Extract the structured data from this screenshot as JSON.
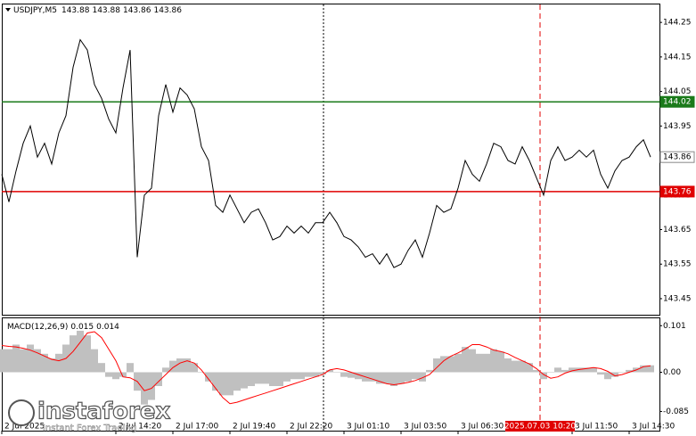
{
  "chart_data": [
    {
      "type": "line",
      "title": "USDJPY,M5",
      "ohlc": [
        143.88,
        143.88,
        143.86,
        143.86
      ],
      "color": "#000000",
      "values": [
        143.81,
        143.73,
        143.82,
        143.9,
        143.95,
        143.86,
        143.9,
        143.84,
        143.93,
        143.98,
        144.12,
        144.2,
        144.17,
        144.07,
        144.03,
        143.97,
        143.93,
        144.06,
        144.17,
        143.57,
        143.75,
        143.77,
        143.98,
        144.07,
        143.99,
        144.06,
        144.04,
        144.0,
        143.89,
        143.85,
        143.72,
        143.7,
        143.75,
        143.71,
        143.67,
        143.7,
        143.71,
        143.67,
        143.62,
        143.63,
        143.66,
        143.64,
        143.66,
        143.64,
        143.67,
        143.67,
        143.7,
        143.67,
        143.63,
        143.62,
        143.6,
        143.57,
        143.58,
        143.55,
        143.58,
        143.54,
        143.55,
        143.59,
        143.62,
        143.57,
        143.64,
        143.72,
        143.7,
        143.71,
        143.77,
        143.85,
        143.81,
        143.79,
        143.84,
        143.9,
        143.89,
        143.85,
        143.84,
        143.89,
        143.85,
        143.8,
        143.75,
        143.85,
        143.89,
        143.85,
        143.86,
        143.88,
        143.86,
        143.88,
        143.81,
        143.77,
        143.82,
        143.85,
        143.86,
        143.89,
        143.91,
        143.86
      ],
      "ylim": [
        143.406,
        144.302
      ],
      "yticks": [
        143.45,
        143.55,
        143.65,
        143.75,
        143.85,
        143.95,
        144.05,
        144.15,
        144.25
      ],
      "xlim": [
        0,
        92.25
      ],
      "xticks": [
        {
          "value": 0,
          "label": "2 Jul 2025"
        },
        {
          "value": 16,
          "label": "2 Jul 14:20"
        },
        {
          "value": 24,
          "label": "2 Jul 17:00"
        },
        {
          "value": 32,
          "label": "2 Jul 19:40"
        },
        {
          "value": 40,
          "label": "2 Jul 22:20"
        },
        {
          "value": 48,
          "label": "3 Jul 01:10"
        },
        {
          "value": 56,
          "label": "3 Jul 03:50"
        },
        {
          "value": 64,
          "label": "3 Jul 06:30"
        },
        {
          "value": 80,
          "label": "3 Jul 11:50"
        },
        {
          "value": 88,
          "label": "3 Jul 14:30"
        }
      ],
      "crosshair": {
        "value": 75.5,
        "label": "2025.07.03 10:20",
        "color": "#e00000"
      },
      "levels": [
        {
          "value": 144.02,
          "color": "#1a7a1a"
        },
        {
          "value": 143.76,
          "color": "#e00000"
        }
      ],
      "last_price": 143.86,
      "grid": false
    },
    {
      "type": "macd",
      "title": "MACD(12,26,9)",
      "indicator_values": [
        0.015,
        0.014
      ],
      "ylim": [
        -0.1267,
        0.117
      ],
      "yticks": [
        -0.085,
        {
          "value": 0,
          "label": "0.00"
        },
        0.101
      ],
      "xlim": [
        0,
        92.25
      ],
      "histogram": {
        "color": "#c0c0c0",
        "values": [
          0.05,
          0.05,
          0.06,
          0.05,
          0.06,
          0.05,
          0.04,
          0.03,
          0.04,
          0.06,
          0.08,
          0.09,
          0.08,
          0.05,
          0.02,
          -0.01,
          -0.015,
          -0.01,
          0.02,
          -0.04,
          -0.07,
          -0.06,
          -0.03,
          0.01,
          0.025,
          0.03,
          0.03,
          0.02,
          0.0,
          -0.02,
          -0.04,
          -0.05,
          -0.05,
          -0.04,
          -0.035,
          -0.03,
          -0.025,
          -0.025,
          -0.03,
          -0.03,
          -0.02,
          -0.015,
          -0.015,
          -0.01,
          -0.01,
          -0.005,
          0.005,
          0.0,
          -0.01,
          -0.012,
          -0.015,
          -0.02,
          -0.02,
          -0.025,
          -0.025,
          -0.03,
          -0.025,
          -0.02,
          -0.015,
          -0.02,
          0.005,
          0.03,
          0.035,
          0.035,
          0.04,
          0.055,
          0.05,
          0.04,
          0.04,
          0.05,
          0.045,
          0.03,
          0.025,
          0.025,
          0.02,
          0.005,
          -0.015,
          0.0,
          0.01,
          0.005,
          0.01,
          0.01,
          0.01,
          0.01,
          -0.005,
          -0.015,
          -0.01,
          0.0,
          0.005,
          0.01,
          0.015,
          0.015
        ]
      },
      "signal": {
        "color": "#ff0000",
        "values": [
          0.058,
          0.056,
          0.055,
          0.052,
          0.048,
          0.042,
          0.035,
          0.028,
          0.025,
          0.03,
          0.045,
          0.065,
          0.085,
          0.088,
          0.075,
          0.05,
          0.025,
          -0.01,
          -0.012,
          -0.02,
          -0.04,
          -0.035,
          -0.02,
          -0.005,
          0.01,
          0.02,
          0.025,
          0.02,
          0.005,
          -0.015,
          -0.035,
          -0.055,
          -0.068,
          -0.065,
          -0.06,
          -0.055,
          -0.05,
          -0.045,
          -0.04,
          -0.035,
          -0.03,
          -0.025,
          -0.02,
          -0.015,
          -0.01,
          -0.005,
          0.005,
          0.008,
          0.005,
          0.0,
          -0.005,
          -0.01,
          -0.015,
          -0.02,
          -0.025,
          -0.027,
          -0.025,
          -0.022,
          -0.018,
          -0.012,
          -0.005,
          0.01,
          0.025,
          0.035,
          0.042,
          0.05,
          0.06,
          0.06,
          0.055,
          0.048,
          0.045,
          0.04,
          0.032,
          0.025,
          0.018,
          0.008,
          -0.005,
          -0.013,
          -0.01,
          -0.002,
          0.003,
          0.006,
          0.008,
          0.01,
          0.008,
          0.002,
          -0.008,
          -0.005,
          0.0,
          0.005,
          0.012,
          0.014
        ]
      }
    }
  ],
  "watermark": {
    "brand": "instaforex",
    "tagline": "Instant Forex Trading"
  }
}
